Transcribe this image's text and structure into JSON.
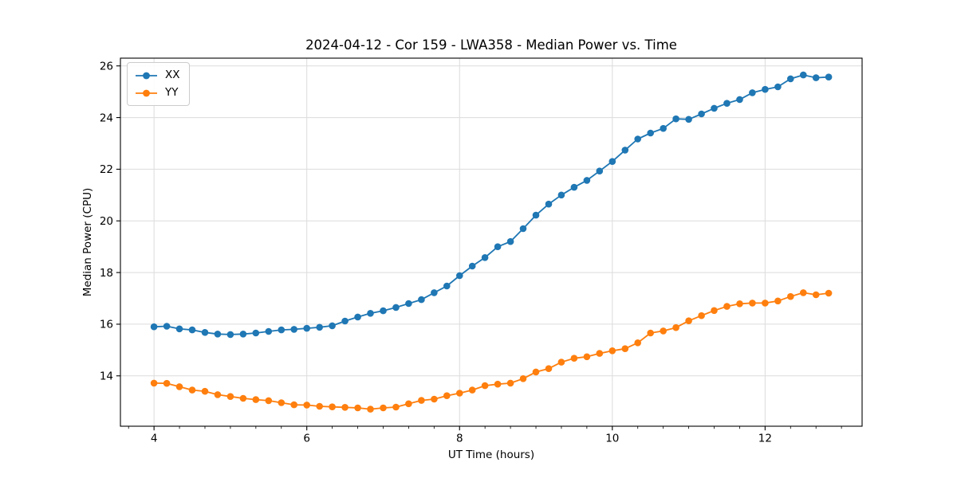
{
  "figure": {
    "background": "#ffffff"
  },
  "chart_data": {
    "type": "line",
    "title": "2024-04-12 - Cor 159 - LWA358 - Median Power vs. Time",
    "xlabel": "UT Time (hours)",
    "ylabel": "Median Power (CPU)",
    "xlim": [
      3.56,
      13.27
    ],
    "ylim": [
      12.05,
      26.3
    ],
    "xticks": [
      4,
      6,
      8,
      10,
      12
    ],
    "yticks": [
      14,
      16,
      18,
      20,
      22,
      24,
      26
    ],
    "x_minor_step": 0.33333,
    "grid": true,
    "grid_color": "#dcdcdc",
    "legend_position": "upper left",
    "x": [
      4.0,
      4.167,
      4.333,
      4.5,
      4.667,
      4.833,
      5.0,
      5.167,
      5.333,
      5.5,
      5.667,
      5.833,
      6.0,
      6.167,
      6.333,
      6.5,
      6.667,
      6.833,
      7.0,
      7.167,
      7.333,
      7.5,
      7.667,
      7.833,
      8.0,
      8.167,
      8.333,
      8.5,
      8.667,
      8.833,
      9.0,
      9.167,
      9.333,
      9.5,
      9.667,
      9.833,
      10.0,
      10.167,
      10.333,
      10.5,
      10.667,
      10.833,
      11.0,
      11.167,
      11.333,
      11.5,
      11.667,
      11.833,
      12.0,
      12.167,
      12.333,
      12.5,
      12.667,
      12.833
    ],
    "series": [
      {
        "name": "XX",
        "color": "#1f77b4",
        "values": [
          15.9,
          15.92,
          15.82,
          15.78,
          15.68,
          15.62,
          15.6,
          15.62,
          15.66,
          15.72,
          15.78,
          15.8,
          15.84,
          15.88,
          15.94,
          16.12,
          16.28,
          16.42,
          16.52,
          16.65,
          16.8,
          16.95,
          17.22,
          17.48,
          17.88,
          18.25,
          18.58,
          19.0,
          19.2,
          19.7,
          20.22,
          20.65,
          21.0,
          21.3,
          21.57,
          21.93,
          22.3,
          22.74,
          23.17,
          23.4,
          23.58,
          23.95,
          23.93,
          24.14,
          24.36,
          24.55,
          24.7,
          24.96,
          25.09,
          25.19,
          25.5,
          25.65,
          25.54,
          25.57
        ]
      },
      {
        "name": "YY",
        "color": "#ff7f0e",
        "values": [
          13.72,
          13.71,
          13.58,
          13.45,
          13.4,
          13.27,
          13.2,
          13.13,
          13.08,
          13.04,
          12.96,
          12.88,
          12.87,
          12.82,
          12.8,
          12.78,
          12.76,
          12.71,
          12.76,
          12.79,
          12.92,
          13.05,
          13.1,
          13.23,
          13.33,
          13.45,
          13.62,
          13.68,
          13.72,
          13.89,
          14.15,
          14.28,
          14.53,
          14.68,
          14.74,
          14.87,
          14.97,
          15.05,
          15.28,
          15.66,
          15.74,
          15.87,
          16.13,
          16.33,
          16.53,
          16.69,
          16.79,
          16.82,
          16.82,
          16.9,
          17.07,
          17.22,
          17.14,
          17.2
        ]
      }
    ]
  }
}
